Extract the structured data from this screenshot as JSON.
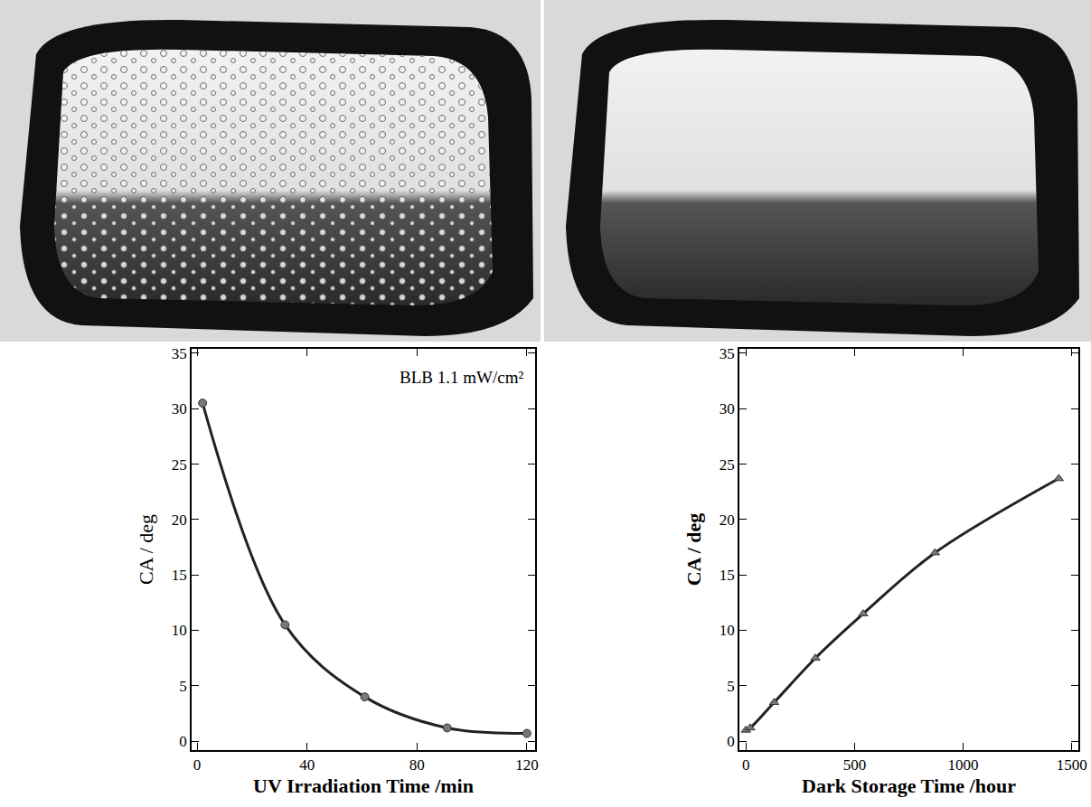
{
  "chart_data": [
    {
      "type": "line",
      "x": [
        2,
        32,
        61,
        91,
        120
      ],
      "values": [
        30.5,
        10.5,
        4,
        1.2,
        0.7
      ],
      "x_label": "UV Irradiation Time /min",
      "y_label": "CA / deg",
      "annotations": [
        "BLB 1.1 mW/cm²"
      ],
      "xlim": [
        -2,
        123
      ],
      "ylim": [
        -0.8,
        35.4
      ],
      "xticks": [
        0,
        40,
        80,
        120
      ],
      "yticks": [
        0,
        5,
        10,
        15,
        20,
        25,
        30,
        35
      ],
      "color": "#222222",
      "marker": "circle",
      "line_style": "solid",
      "grid": false
    },
    {
      "type": "line",
      "x": [
        0,
        20,
        130,
        320,
        540,
        870,
        1440
      ],
      "values": [
        1,
        1.2,
        3.5,
        7.5,
        11.5,
        17,
        23.7
      ],
      "x_label": "Dark Storage Time /hour",
      "y_label": "CA / deg",
      "xlim": [
        -30,
        1530
      ],
      "ylim": [
        -0.8,
        35.4
      ],
      "xticks": [
        0,
        500,
        1000,
        1500
      ],
      "yticks": [
        0,
        5,
        10,
        15,
        20,
        25,
        30,
        35
      ],
      "color": "#222222",
      "marker": "triangle-up",
      "line_style": "solid",
      "grid": false
    }
  ]
}
